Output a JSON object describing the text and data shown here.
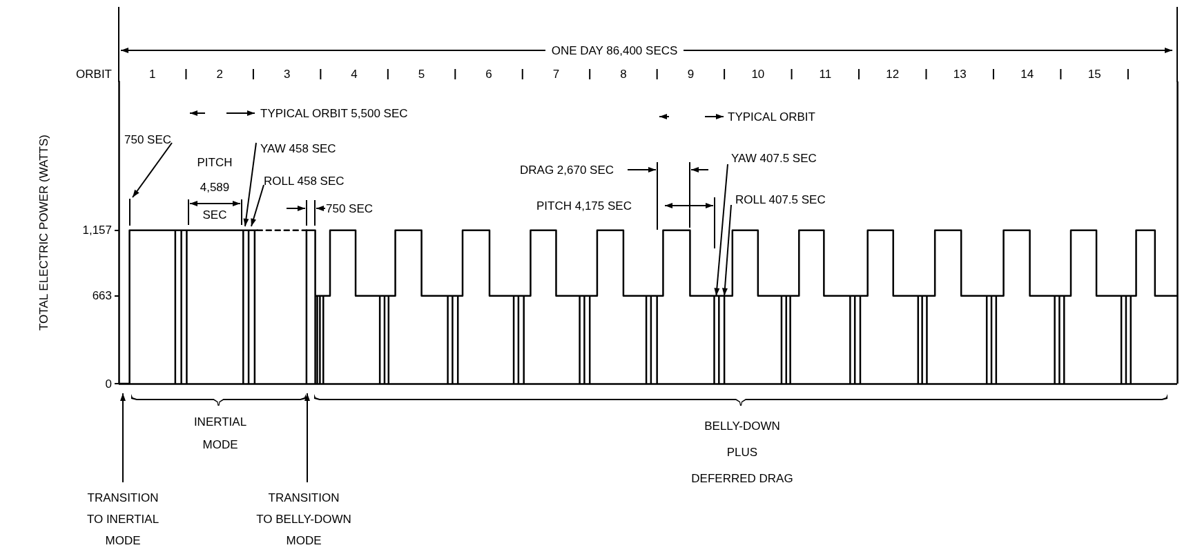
{
  "chart_data": {
    "type": "line",
    "ylabel": "TOTAL ELECTRIC POWER (WATTS)",
    "xlabel": "ORBIT",
    "xlim": [
      0.5,
      16.23
    ],
    "xticks": [
      1,
      {
        "value": 1.5,
        "label": null
      },
      2,
      {
        "value": 2.5,
        "label": null
      },
      3,
      {
        "value": 3.5,
        "label": null
      },
      4,
      {
        "value": 4.5,
        "label": null
      },
      5,
      {
        "value": 5.5,
        "label": null
      },
      6,
      {
        "value": 6.5,
        "label": null
      },
      7,
      {
        "value": 7.5,
        "label": null
      },
      8,
      {
        "value": 8.5,
        "label": null
      },
      9,
      {
        "value": 9.5,
        "label": null
      },
      10,
      {
        "value": 10.5,
        "label": null
      },
      11,
      {
        "value": 11.5,
        "label": null
      },
      12,
      {
        "value": 12.5,
        "label": null
      },
      13,
      {
        "value": 13.5,
        "label": null
      },
      14,
      {
        "value": 14.5,
        "label": null
      },
      15,
      {
        "value": 15.5,
        "label": null
      }
    ],
    "ylim": [
      0,
      2280
    ],
    "yticks": [
      0,
      663,
      {
        "value": 1157,
        "label": "1,157"
      }
    ],
    "marker": "none",
    "line_style": "solid",
    "series": [
      {
        "color": "#000000",
        "x": [
          0.5,
          0.66,
          0.66,
          1.34,
          1.34,
          1.34,
          1.43,
          1.43,
          1.43,
          1.51,
          1.51,
          1.51,
          2.35,
          2.35,
          2.35,
          2.43,
          2.43,
          2.43,
          2.52,
          2.52,
          2.52,
          2.56
        ],
        "values": [
          0,
          0,
          1157,
          1157,
          0,
          1157,
          1157,
          0,
          1157,
          1157,
          0,
          1157,
          1157,
          0,
          1157,
          1157,
          0,
          1157,
          1157,
          0,
          1157,
          1157
        ]
      },
      {
        "color": "#000000",
        "line_style": "dashed",
        "x": [
          2.56,
          3.29
        ],
        "values": [
          1157,
          1157
        ]
      },
      {
        "color": "#000000",
        "x": [
          3.29,
          3.29,
          3.42,
          3.42,
          3.42,
          3.45,
          3.45,
          3.45,
          3.49,
          3.49,
          3.49,
          3.54,
          3.54,
          3.54,
          3.64,
          3.64,
          4.02,
          4.02,
          4.38,
          4.38,
          4.38,
          4.45,
          4.45,
          4.45,
          4.51,
          4.51,
          4.51,
          4.61,
          4.61,
          5.0,
          5.0,
          5.39,
          5.39,
          5.39,
          5.46,
          5.46,
          5.46,
          5.54,
          5.54,
          5.54,
          5.61,
          5.61,
          6.01,
          6.01,
          6.37,
          6.37,
          6.37,
          6.44,
          6.44,
          6.44,
          6.52,
          6.52,
          6.52,
          6.62,
          6.62,
          7.0,
          7.0,
          7.35,
          7.35,
          7.35,
          7.42,
          7.42,
          7.42,
          7.5,
          7.5,
          7.5,
          7.61,
          7.61,
          8.0,
          8.0,
          8.34,
          8.34,
          8.34,
          8.41,
          8.41,
          8.41,
          8.5,
          8.5,
          8.5,
          8.59,
          8.59,
          8.99,
          8.99,
          9.35,
          9.35,
          9.35,
          9.42,
          9.42,
          9.42,
          9.5,
          9.5,
          9.5,
          9.62,
          9.62,
          10.0,
          10.0,
          10.35,
          10.35,
          10.35,
          10.42,
          10.42,
          10.42,
          10.48,
          10.48,
          10.48,
          10.61,
          10.61,
          10.98,
          10.98,
          11.37,
          11.37,
          11.37,
          11.44,
          11.44,
          11.44,
          11.52,
          11.52,
          11.52,
          11.63,
          11.63,
          12.01,
          12.01,
          12.38,
          12.38,
          12.38,
          12.44,
          12.44,
          12.44,
          12.51,
          12.51,
          12.51,
          12.63,
          12.63,
          13.02,
          13.02,
          13.4,
          13.4,
          13.4,
          13.47,
          13.47,
          13.47,
          13.54,
          13.54,
          13.54,
          13.65,
          13.65,
          14.04,
          14.04,
          14.41,
          14.41,
          14.41,
          14.48,
          14.48,
          14.48,
          14.55,
          14.55,
          14.55,
          14.65,
          14.65,
          15.03,
          15.03,
          15.4,
          15.4,
          15.4,
          15.47,
          15.47,
          15.47,
          15.54,
          15.54,
          15.54,
          15.62,
          15.62,
          15.9,
          15.9,
          16.23
        ],
        "values": [
          0,
          1157,
          1157,
          0,
          663,
          663,
          0,
          663,
          663,
          0,
          663,
          663,
          0,
          663,
          663,
          1157,
          1157,
          663,
          663,
          0,
          663,
          663,
          0,
          663,
          663,
          0,
          663,
          663,
          1157,
          1157,
          663,
          663,
          0,
          663,
          663,
          0,
          663,
          663,
          0,
          663,
          663,
          1157,
          1157,
          663,
          663,
          0,
          663,
          663,
          0,
          663,
          663,
          0,
          663,
          663,
          1157,
          1157,
          663,
          663,
          0,
          663,
          663,
          0,
          663,
          663,
          0,
          663,
          663,
          1157,
          1157,
          663,
          663,
          0,
          663,
          663,
          0,
          663,
          663,
          0,
          663,
          663,
          1157,
          1157,
          663,
          663,
          0,
          663,
          663,
          0,
          663,
          663,
          0,
          663,
          663,
          1157,
          1157,
          663,
          663,
          0,
          663,
          663,
          0,
          663,
          663,
          0,
          663,
          663,
          1157,
          1157,
          663,
          663,
          0,
          663,
          663,
          0,
          663,
          663,
          0,
          663,
          663,
          1157,
          1157,
          663,
          663,
          0,
          663,
          663,
          0,
          663,
          663,
          0,
          663,
          663,
          1157,
          1157,
          663,
          663,
          0,
          663,
          663,
          0,
          663,
          663,
          0,
          663,
          663,
          1157,
          1157,
          663,
          663,
          0,
          663,
          663,
          0,
          663,
          663,
          0,
          663,
          663,
          1157,
          1157,
          663,
          663,
          0,
          663,
          663,
          0,
          663,
          663,
          0,
          663,
          663,
          1157,
          1157,
          663,
          663
        ]
      }
    ],
    "ref_lines": [
      {
        "axis": "x",
        "value": 16.23
      },
      {
        "axis": "y",
        "value": 0
      }
    ],
    "annotations": [
      "ONE DAY 86,400 SECS",
      "TYPICAL ORBIT 5,500 SEC",
      "TYPICAL ORBIT",
      "750 SEC",
      "PITCH 4,589 SEC",
      "YAW 458 SEC",
      "ROLL 458 SEC",
      "750 SEC",
      "DRAG 2,670 SEC",
      "PITCH 4,175 SEC",
      {
        "text": "YAW 407.5 SEC",
        "x": 9.38,
        "y": 663
      },
      {
        "text": "ROLL 407.5 SEC",
        "x": 9.5,
        "y": 663
      },
      "INERTIAL MODE",
      "BELLY-DOWN PLUS DEFERRED DRAG",
      "TRANSITION TO INERTIAL MODE",
      "TRANSITION TO BELLY-DOWN MODE"
    ]
  }
}
